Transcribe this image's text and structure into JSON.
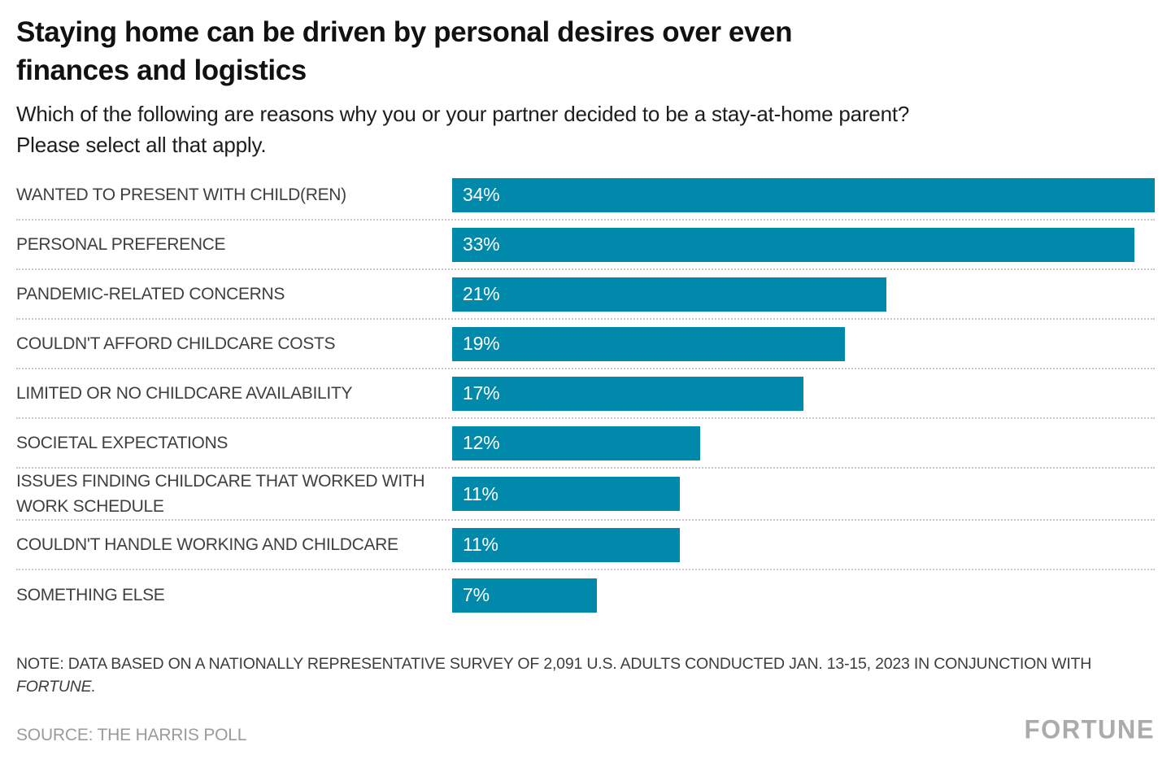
{
  "header": {
    "title_lines": [
      "Staying home can be driven by personal desires over even",
      "finances and logistics"
    ],
    "subtitle_lines": [
      "Which of the following are reasons why you or your partner decided to be a stay-at-home parent?",
      "Please select all that apply."
    ]
  },
  "chart_data": {
    "type": "bar",
    "orientation": "horizontal",
    "categories": [
      "WANTED TO PRESENT WITH CHILD(REN)",
      "PERSONAL PREFERENCE",
      "PANDEMIC-RELATED CONCERNS",
      "COULDN'T AFFORD CHILDCARE COSTS",
      "LIMITED OR NO CHILDCARE AVAILABILITY",
      "SOCIETAL EXPECTATIONS",
      "ISSUES FINDING CHILDCARE THAT WORKED WITH WORK SCHEDULE",
      "COULDN'T HANDLE WORKING AND CHILDCARE",
      "SOMETHING ELSE"
    ],
    "values": [
      34,
      33,
      21,
      19,
      17,
      12,
      11,
      11,
      7
    ],
    "value_labels": [
      "34%",
      "33%",
      "21%",
      "19%",
      "17%",
      "12%",
      "11%",
      "11%",
      "7%"
    ],
    "unit": "%",
    "xlim": [
      0,
      34
    ],
    "bar_color": "#0089ab",
    "value_label_position": "inside-left",
    "grid": "dotted-row-separators",
    "legend": "none",
    "title": "Staying home can be driven by personal desires over even finances and logistics",
    "subtitle": "Which of the following are reasons why you or your partner decided to be a stay-at-home parent? Please select all that apply."
  },
  "footer": {
    "note_line1": "NOTE: DATA BASED ON A NATIONALLY REPRESENTATIVE SURVEY OF 2,091 U.S. ADULTS CONDUCTED JAN. 13-15, 2023 IN CONJUNCTION WITH",
    "note_line2_italic": "FORTUNE.",
    "source": "SOURCE: THE HARRIS POLL",
    "logo": "FORTUNE"
  },
  "colors": {
    "bar": "#0089ab",
    "title_text": "#111111",
    "label_text": "#3f3f3f",
    "separator": "#c9c9c9",
    "source_text": "#9b9b9b",
    "logo_text": "#ababab"
  }
}
